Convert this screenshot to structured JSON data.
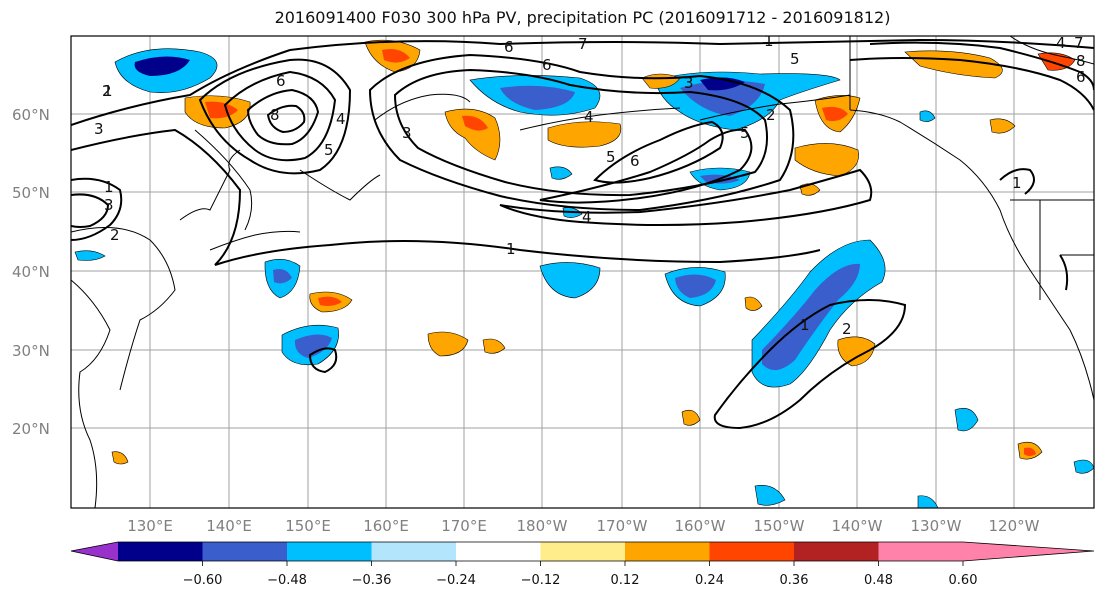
{
  "title": "2016091400 F030 300 hPa PV, precipitation PC (2016091712 - 2016091812)",
  "lat_labels": [
    "60°N",
    "50°N",
    "40°N",
    "30°N",
    "20°N"
  ],
  "lon_labels": [
    "130°E",
    "140°E",
    "150°E",
    "160°E",
    "170°E",
    "180°W",
    "170°W",
    "160°W",
    "150°W",
    "140°W",
    "130°W",
    "120°W"
  ],
  "colorbar": {
    "ticks": [
      "−0.60",
      "−0.48",
      "−0.36",
      "−0.24",
      "−0.12",
      "0.12",
      "0.24",
      "0.36",
      "0.48",
      "0.60"
    ],
    "colors": [
      "#9932cc",
      "#00008b",
      "#3a5fcd",
      "#00bfff",
      "#b3e5fc",
      "#ffffff",
      "#ffec8b",
      "#ffa500",
      "#ff4500",
      "#b22222",
      "#ff82ab"
    ]
  },
  "contour_labels": [
    "1",
    "2",
    "3",
    "1",
    "3",
    "2",
    "6",
    "8",
    "5",
    "4",
    "3",
    "6",
    "7",
    "6",
    "4",
    "5",
    "3",
    "2",
    "1",
    "5",
    "6",
    "4",
    "1",
    "5",
    "7",
    "4",
    "8",
    "6",
    "1",
    "2",
    "1"
  ],
  "colors": {
    "pos_light": "#ffec8b",
    "pos": "#ffa500",
    "pos_strong": "#ff4500",
    "neg_light": "#b3e5fc",
    "neg": "#00bfff",
    "neg_strong": "#3a5fcd",
    "neg_very": "#00008b"
  }
}
